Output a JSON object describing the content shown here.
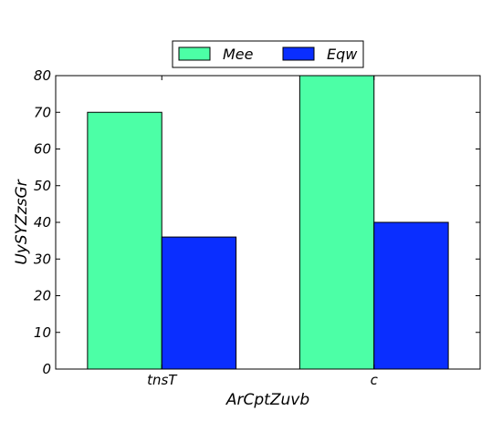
{
  "chart_data": {
    "type": "bar",
    "categories": [
      "tnsT",
      "c"
    ],
    "series": [
      {
        "name": "Mee",
        "values": [
          70,
          80
        ],
        "color": "#4cffa6"
      },
      {
        "name": "Eqw",
        "values": [
          36,
          40
        ],
        "color": "#0a2eff"
      }
    ],
    "title": "",
    "xlabel": "ArCptZuvb",
    "ylabel": "UySYZzsGr",
    "ylim": [
      0,
      80
    ],
    "yticks": [
      0,
      10,
      20,
      30,
      40,
      50,
      60,
      70,
      80
    ],
    "grid": false,
    "legend_position": "top-center",
    "legend_columns": 2
  }
}
